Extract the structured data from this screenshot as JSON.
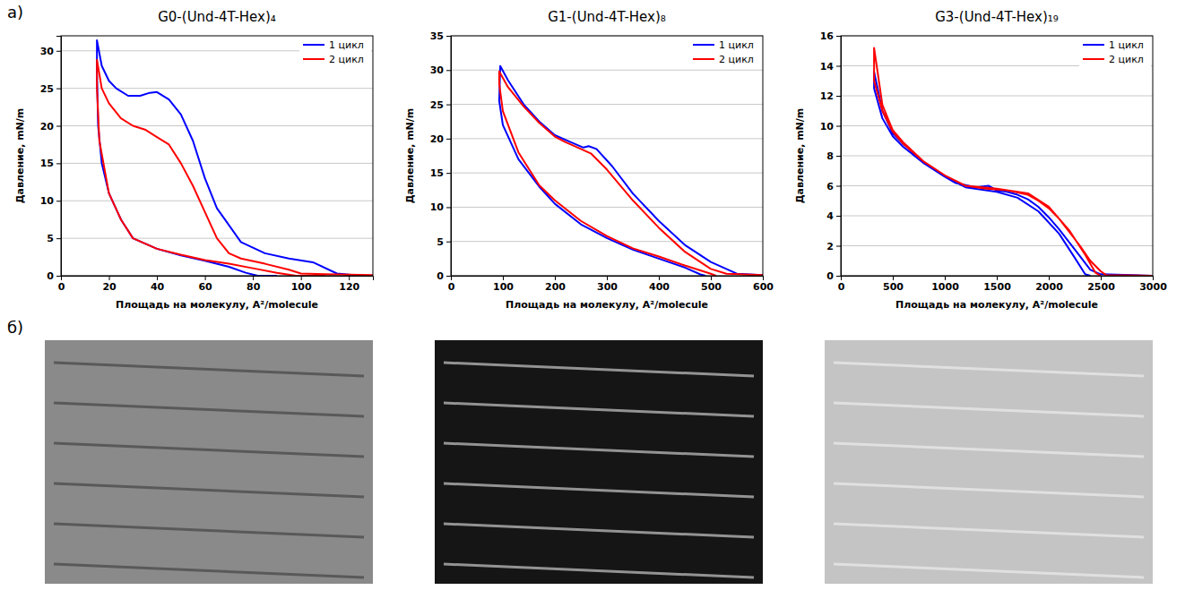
{
  "panel_labels": [
    "а)",
    "б)"
  ],
  "chart_data": [
    {
      "type": "line",
      "title": "G0-(Und-4T-Hex)₄",
      "x_label": "Площадь на молекулу, A²/molecule",
      "y_label": "Давление, mN/m",
      "xlim": [
        0,
        130
      ],
      "xticks": [
        0,
        20,
        40,
        60,
        80,
        100,
        120
      ],
      "ylim": [
        0,
        32
      ],
      "yticks": [
        0,
        5,
        10,
        15,
        20,
        25,
        30
      ],
      "grid": true,
      "legend": "upper right",
      "series": [
        {
          "name": "1 цикл",
          "color": "#0000ff",
          "x": [
            125,
            115,
            105,
            95,
            85,
            75,
            65,
            60,
            55,
            50,
            45,
            40,
            37,
            33,
            28,
            23,
            20,
            17,
            15,
            15,
            15.5,
            17,
            20,
            25,
            30,
            40,
            50,
            60,
            70,
            77,
            82,
            90
          ],
          "values": [
            0,
            0.3,
            1.8,
            2.3,
            3,
            4.5,
            9,
            13,
            18,
            21.5,
            23.5,
            24.5,
            24.4,
            24,
            24,
            25,
            26,
            28,
            31.4,
            27,
            20,
            15,
            11,
            7.5,
            5,
            3.6,
            2.7,
            2,
            1.2,
            0.4,
            0,
            0
          ]
        },
        {
          "name": "2 цикл",
          "color": "#ff0000",
          "x": [
            130,
            110,
            100,
            95,
            85,
            75,
            70,
            65,
            60,
            55,
            50,
            45,
            40,
            35,
            30,
            25,
            20,
            17,
            15,
            15,
            16,
            20,
            25,
            30,
            40,
            50,
            60,
            70,
            80,
            90,
            98,
            110
          ],
          "values": [
            0.1,
            0.2,
            0.3,
            0.8,
            1.6,
            2.3,
            3,
            5,
            8.5,
            12,
            15,
            17.5,
            18.5,
            19.5,
            20,
            21,
            23,
            25,
            28.8,
            25,
            18,
            11,
            7.5,
            5,
            3.6,
            2.8,
            2.1,
            1.6,
            1,
            0.4,
            0,
            0
          ]
        }
      ]
    },
    {
      "type": "line",
      "title": "G1-(Und-4T-Hex)₈",
      "x_label": "Площадь на молекулу, A²/molecule",
      "y_label": "Давление, mN/m",
      "xlim": [
        0,
        600
      ],
      "xticks": [
        0,
        100,
        200,
        300,
        400,
        500,
        600
      ],
      "ylim": [
        0,
        35
      ],
      "yticks": [
        0,
        5,
        10,
        15,
        20,
        25,
        30,
        35
      ],
      "grid": true,
      "legend": "upper right",
      "series": [
        {
          "name": "1 цикл",
          "color": "#0000ff",
          "x": [
            600,
            550,
            500,
            450,
            400,
            350,
            310,
            280,
            265,
            255,
            230,
            200,
            170,
            140,
            110,
            95,
            93,
            100,
            130,
            170,
            200,
            250,
            300,
            350,
            400,
            450,
            480,
            490
          ],
          "values": [
            0.1,
            0.3,
            2,
            4.5,
            8,
            12,
            16,
            18.5,
            18.9,
            18.7,
            19.5,
            20.5,
            22.5,
            25,
            28.5,
            30.6,
            25.5,
            22,
            17,
            13,
            10.5,
            7.5,
            5.5,
            3.8,
            2.5,
            1.2,
            0.2,
            0
          ]
        },
        {
          "name": "2 цикл",
          "color": "#ff0000",
          "x": [
            600,
            530,
            500,
            450,
            400,
            350,
            300,
            270,
            250,
            220,
            200,
            170,
            140,
            110,
            93,
            93,
            100,
            130,
            170,
            200,
            250,
            300,
            350,
            400,
            450,
            500,
            510
          ],
          "values": [
            0.1,
            0.3,
            1,
            3.5,
            7,
            11,
            15.5,
            17.8,
            18.5,
            19.5,
            20.3,
            22.3,
            24.7,
            27.5,
            29.8,
            28,
            24,
            18,
            13.2,
            11,
            8,
            5.8,
            4,
            2.8,
            1.5,
            0.3,
            0
          ]
        }
      ]
    },
    {
      "type": "line",
      "title": "G3-(Und-4T-Hex)₁₉",
      "x_label": "Площадь на молекулу, A²/molecule",
      "y_label": "Давление, mN/m",
      "xlim": [
        0,
        3000
      ],
      "xticks": [
        0,
        500,
        1000,
        1500,
        2000,
        2500,
        3000
      ],
      "ylim": [
        0,
        16
      ],
      "yticks": [
        0,
        2,
        4,
        6,
        8,
        10,
        12,
        14,
        16
      ],
      "grid": true,
      "legend": "upper right",
      "series": [
        {
          "name": "1 цикл",
          "color": "#0000ff",
          "x": [
            3000,
            2500,
            2400,
            2300,
            2200,
            2100,
            2000,
            1900,
            1800,
            1700,
            1600,
            1500,
            1420,
            1300,
            1100,
            1000,
            900,
            800,
            700,
            600,
            500,
            400,
            320,
            320,
            400,
            500,
            600,
            800,
            1000,
            1200,
            1500,
            1700,
            1900,
            2100,
            2250,
            2350,
            2400
          ],
          "values": [
            0,
            0.1,
            0.4,
            1.3,
            2.2,
            3.1,
            3.9,
            4.6,
            5.1,
            5.4,
            5.6,
            5.7,
            6.0,
            5.9,
            6.2,
            6.6,
            7.1,
            7.5,
            8.2,
            8.8,
            9.5,
            11,
            13.6,
            12.5,
            10.5,
            9.3,
            8.6,
            7.5,
            6.6,
            5.9,
            5.6,
            5.2,
            4.3,
            2.8,
            1.2,
            0.1,
            0
          ]
        },
        {
          "name": "2 цикл",
          "color": "#ff0000",
          "x": [
            3000,
            2550,
            2500,
            2400,
            2300,
            2200,
            2100,
            2000,
            1900,
            1800,
            1600,
            1400,
            1200,
            1000,
            800,
            600,
            500,
            400,
            320,
            320,
            400,
            500,
            600,
            800,
            1000,
            1200,
            1500,
            1800,
            2000,
            2200,
            2350,
            2450,
            2500
          ],
          "values": [
            0,
            0.05,
            0.3,
            1.0,
            2.0,
            2.9,
            3.8,
            4.5,
            5.0,
            5.4,
            5.7,
            5.8,
            6.0,
            6.7,
            7.6,
            8.9,
            9.7,
            11.4,
            15.2,
            13,
            11,
            9.6,
            8.8,
            7.6,
            6.7,
            6.0,
            5.8,
            5.5,
            4.6,
            3.0,
            1.4,
            0.2,
            0
          ]
        }
      ]
    }
  ]
}
